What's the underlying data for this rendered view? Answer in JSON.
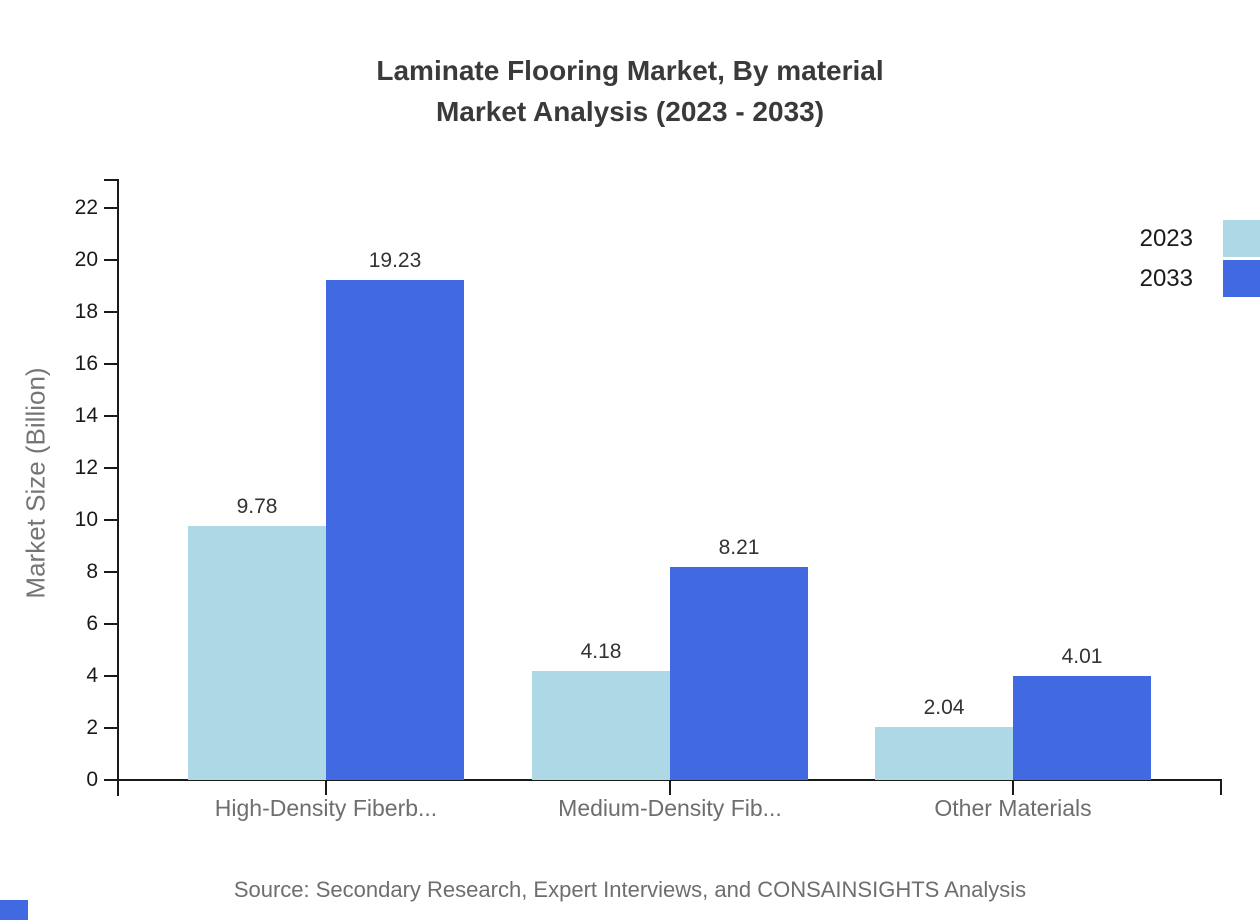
{
  "title": {
    "line1": "Laminate Flooring Market, By material",
    "line2": "Market Analysis (2023 - 2033)"
  },
  "legend": [
    {
      "label": "2023",
      "color": "#ADD8E6"
    },
    {
      "label": "2033",
      "color": "#4169E1"
    }
  ],
  "source": "Source: Secondary Research, Expert Interviews, and CONSAINSIGHTS Analysis",
  "colors": {
    "axis": "#1a1a1a",
    "title_text": "#3a3a3a",
    "muted_text": "#6e6e6e",
    "tick_label_text": "#1a1a1a",
    "value_label_text": "#333333",
    "series_2023": "#ADD8E6",
    "series_2033": "#4169E1",
    "corner_square": "#4169E1"
  },
  "chart_data": {
    "type": "bar",
    "title": "Laminate Flooring Market, By material Market Analysis (2023 - 2033)",
    "categories": [
      "High-Density Fiberb...",
      "Medium-Density Fib...",
      "Other Materials"
    ],
    "series": [
      {
        "name": "2023",
        "color": "#ADD8E6",
        "values": [
          9.78,
          4.18,
          2.04
        ]
      },
      {
        "name": "2033",
        "color": "#4169E1",
        "values": [
          19.23,
          8.21,
          4.01
        ]
      }
    ],
    "xlabel": "",
    "ylabel": "Market Size (Billion)",
    "ylim": [
      0,
      23
    ],
    "y_ticks": [
      0,
      2,
      4,
      6,
      8,
      10,
      12,
      14,
      16,
      18,
      20,
      22
    ],
    "grid": false,
    "legend_position": "top-right",
    "value_labels": true
  }
}
